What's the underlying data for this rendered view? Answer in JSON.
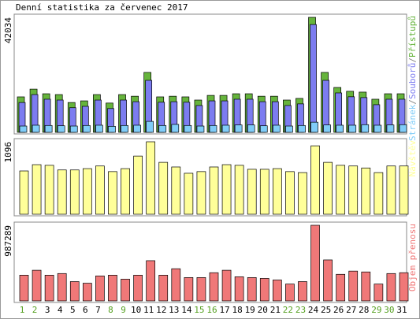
{
  "title": "Denní statistika za červenec 2017",
  "categories": [
    "1",
    "2",
    "3",
    "4",
    "5",
    "6",
    "7",
    "8",
    "9",
    "10",
    "11",
    "12",
    "13",
    "14",
    "15",
    "16",
    "17",
    "18",
    "19",
    "20",
    "21",
    "22",
    "23",
    "24",
    "25",
    "26",
    "27",
    "28",
    "29",
    "30",
    "31"
  ],
  "category_colors": [
    "#55a020",
    "#55a020",
    "#000000",
    "#000000",
    "#000000",
    "#000000",
    "#000000",
    "#55a020",
    "#55a020",
    "#000000",
    "#000000",
    "#000000",
    "#000000",
    "#000000",
    "#55a020",
    "#55a020",
    "#000000",
    "#000000",
    "#000000",
    "#000000",
    "#000000",
    "#55a020",
    "#55a020",
    "#000000",
    "#000000",
    "#000000",
    "#000000",
    "#000000",
    "#55a020",
    "#55a020",
    "#000000"
  ],
  "chart_data": [
    {
      "type": "bar",
      "ylim": [
        0,
        42034
      ],
      "yticks": [
        42034
      ],
      "legend_separator": "/",
      "series": [
        {
          "name": "Přístupů",
          "color": "#66b43c",
          "values": [
            12960,
            15800,
            14100,
            13800,
            10900,
            11500,
            13800,
            10700,
            13800,
            13200,
            21900,
            12960,
            13200,
            12960,
            11800,
            13500,
            13500,
            14100,
            14100,
            13200,
            13200,
            11800,
            12400,
            42034,
            21900,
            16400,
            15000,
            14700,
            12100,
            14100,
            14100
          ]
        },
        {
          "name": "Souborů",
          "color": "#7c7cf0",
          "values": [
            10900,
            13800,
            12100,
            11800,
            9000,
            9500,
            11800,
            8700,
            11800,
            11200,
            19000,
            11000,
            11200,
            11000,
            9800,
            11500,
            11500,
            12100,
            12100,
            11200,
            11200,
            9800,
            10400,
            39400,
            19000,
            14400,
            13000,
            12700,
            10100,
            12100,
            12100
          ]
        },
        {
          "name": "Stránek",
          "color": "#80ccf8",
          "values": [
            2300,
            2600,
            2500,
            2400,
            2300,
            2500,
            2600,
            2200,
            2500,
            2600,
            4000,
            2500,
            2900,
            2500,
            2300,
            2500,
            2600,
            2700,
            2700,
            2400,
            2600,
            2300,
            2500,
            3700,
            2700,
            2600,
            2600,
            2800,
            2600,
            2700,
            2800
          ]
        }
      ]
    },
    {
      "type": "bar",
      "ylim": [
        0,
        1096
      ],
      "yticks": [
        1096
      ],
      "series": [
        {
          "name": "Návštěv",
          "color": "#ffff99",
          "values": [
            655,
            750,
            740,
            670,
            670,
            690,
            730,
            645,
            690,
            880,
            1096,
            785,
            715,
            620,
            645,
            715,
            750,
            740,
            680,
            680,
            690,
            645,
            630,
            1035,
            785,
            740,
            730,
            700,
            630,
            730,
            730
          ]
        }
      ]
    },
    {
      "type": "bar",
      "ylim": [
        0,
        987289
      ],
      "yticks": [
        987289
      ],
      "series": [
        {
          "name": "Objem přenosu",
          "color": "#f07878",
          "values": [
            336000,
            400000,
            336000,
            357000,
            252000,
            231000,
            326000,
            336000,
            284000,
            336000,
            525000,
            336000,
            420000,
            305000,
            305000,
            368000,
            400000,
            315000,
            305000,
            294000,
            273000,
            220000,
            252000,
            987289,
            535000,
            347000,
            389000,
            378000,
            220000,
            357000,
            368000
          ]
        }
      ]
    }
  ]
}
